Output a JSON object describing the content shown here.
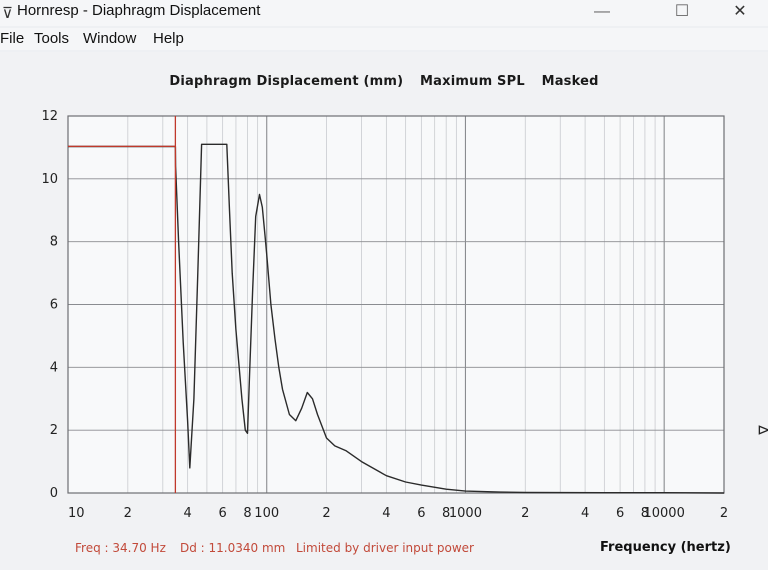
{
  "window": {
    "title": "Hornresp - Diaphragm Displacement",
    "minimize": "—",
    "maximize": "☐",
    "close": "✕"
  },
  "menu": [
    "File",
    "Tools",
    "Window",
    "Help"
  ],
  "chart_header": {
    "part1": "Diaphragm Displacement (mm)",
    "part2": "Maximum SPL",
    "part3": "Masked"
  },
  "status": {
    "freq": "Freq : 34.70 Hz",
    "dd": "Dd : 11.0340 mm",
    "note": "Limited by driver input power",
    "xlabel": "Frequency (hertz)"
  },
  "colors": {
    "plot_bg": "#f8f9fa",
    "grid_major": "#8a8c90",
    "grid_minor": "#c9cbcf",
    "curve": "#2b2b2b",
    "cursor": "#c0392b"
  },
  "chart_data": {
    "type": "line",
    "x_scale": "log",
    "xlim": [
      10,
      20000
    ],
    "ylim": [
      0,
      12
    ],
    "yticks": [
      0,
      2,
      4,
      6,
      8,
      10,
      12
    ],
    "xtick_labels": [
      {
        "x": 10,
        "label": "10"
      },
      {
        "x": 20,
        "label": "2"
      },
      {
        "x": 40,
        "label": "4"
      },
      {
        "x": 60,
        "label": "6"
      },
      {
        "x": 80,
        "label": "8"
      },
      {
        "x": 100,
        "label": "100"
      },
      {
        "x": 200,
        "label": "2"
      },
      {
        "x": 400,
        "label": "4"
      },
      {
        "x": 600,
        "label": "6"
      },
      {
        "x": 800,
        "label": "8"
      },
      {
        "x": 1000,
        "label": "1000"
      },
      {
        "x": 2000,
        "label": "2"
      },
      {
        "x": 4000,
        "label": "4"
      },
      {
        "x": 6000,
        "label": "6"
      },
      {
        "x": 8000,
        "label": "8"
      },
      {
        "x": 10000,
        "label": "10000"
      },
      {
        "x": 20000,
        "label": "2"
      }
    ],
    "series": [
      {
        "x": [
          10,
          34.7,
          34.8,
          36,
          38,
          40,
          41,
          43,
          45,
          47,
          50,
          55,
          60,
          63,
          65,
          67,
          70,
          75,
          78,
          80,
          82,
          85,
          88,
          92,
          95,
          98,
          100,
          105,
          110,
          115,
          120,
          130,
          140,
          150,
          160,
          170,
          180,
          200,
          220,
          250,
          300,
          400,
          500,
          600,
          800,
          1000,
          1500,
          2000,
          5000,
          10000,
          20000
        ],
        "y": [
          11.03,
          11.03,
          10.4,
          8.0,
          4.8,
          2.3,
          0.8,
          3.0,
          7.0,
          11.1,
          11.1,
          11.1,
          11.1,
          11.1,
          9.0,
          7.0,
          5.2,
          3.0,
          2.0,
          1.9,
          3.8,
          6.5,
          8.8,
          9.5,
          9.1,
          8.2,
          7.6,
          6.0,
          4.9,
          4.0,
          3.3,
          2.5,
          2.3,
          2.7,
          3.2,
          3.0,
          2.5,
          1.75,
          1.5,
          1.35,
          1.0,
          0.55,
          0.35,
          0.25,
          0.12,
          0.06,
          0.03,
          0.02,
          0.01,
          0.01,
          0.0
        ]
      }
    ],
    "cursor": {
      "x": 34.7,
      "y": 11.034
    }
  }
}
